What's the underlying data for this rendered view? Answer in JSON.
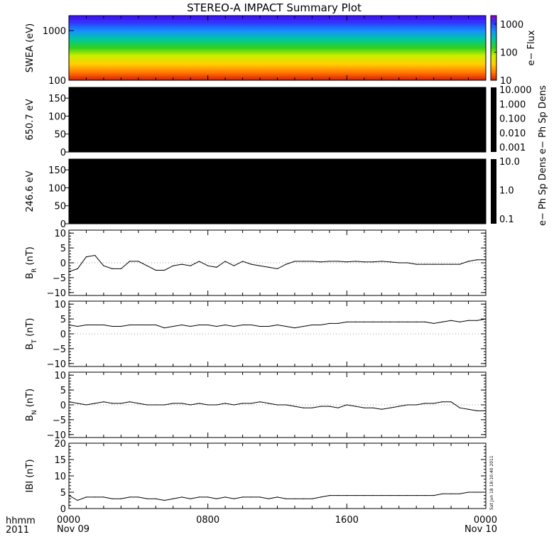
{
  "title": "STEREO-A IMPACT Summary Plot",
  "footer": {
    "label_line1": "hhmm",
    "label_line2": "2011",
    "timestamp_vertical": "Sat Jun 18 18:10:40 2011"
  },
  "chart_data": [
    {
      "type": "heatmap",
      "panel": "swea",
      "ylabel": "SWEA (eV)",
      "ylim": [
        100,
        2000
      ],
      "y_scale": "log",
      "y_ticks": [
        100,
        1000
      ],
      "y_tick_labels": [
        "100",
        "1000"
      ],
      "colorbar_label": "e− Flux",
      "colorbar_scale": "log",
      "colorbar_range": [
        10,
        2000
      ],
      "colorbar_ticks": [
        "10",
        "100",
        "1000"
      ],
      "colorbar_colors": [
        "#e01a00",
        "#ff7a00",
        "#ffd000",
        "#c8f000",
        "#30d020",
        "#00c8a0",
        "#1890ff",
        "#3030ff",
        "#a000c0"
      ]
    },
    {
      "type": "heatmap",
      "panel": "pad_650",
      "ylabel": "650.7 eV",
      "ylim": [
        0,
        180
      ],
      "y_ticks": [
        "0",
        "50",
        "100",
        "150"
      ],
      "fill_color": "#000000",
      "colorbar_label": "e− Ph Sp Dens",
      "colorbar_scale": "log",
      "colorbar_ticks": [
        "10.000",
        "1.000",
        "0.100",
        "0.010",
        "0.001"
      ]
    },
    {
      "type": "heatmap",
      "panel": "pad_246",
      "ylabel": "246.6 eV",
      "ylim": [
        0,
        180
      ],
      "y_ticks": [
        "0",
        "50",
        "100",
        "150"
      ],
      "fill_color": "#000000",
      "colorbar_label": "e− Ph Sp Dens",
      "colorbar_scale": "log",
      "colorbar_ticks": [
        "10.0",
        "1.0",
        "0.1"
      ]
    },
    {
      "type": "line",
      "panel": "br",
      "ylabel": "B",
      "ylabel_sub": "R",
      "ylabel_unit": "(nT)",
      "ylim": [
        -11,
        11
      ],
      "y_ticks": [
        "−10",
        "−5",
        "0",
        "5",
        "10"
      ],
      "x_hours": [
        0,
        0.5,
        1,
        1.5,
        2,
        2.5,
        3,
        3.5,
        4,
        4.5,
        5,
        5.5,
        6,
        6.5,
        7,
        7.5,
        8,
        8.5,
        9,
        9.5,
        10,
        10.5,
        11,
        11.5,
        12,
        12.5,
        13,
        13.5,
        14,
        14.5,
        15,
        15.5,
        16,
        16.5,
        17,
        17.5,
        18,
        18.5,
        19,
        19.5,
        20,
        20.5,
        21,
        21.5,
        22,
        22.5,
        23,
        23.5,
        24
      ],
      "values": [
        -3,
        -2,
        2,
        2.5,
        -1,
        -2,
        -2,
        0.5,
        0.5,
        -1,
        -2.5,
        -2.5,
        -1,
        -0.5,
        -1,
        0.5,
        -1,
        -1.5,
        0.5,
        -1,
        0.5,
        -0.5,
        -1,
        -1.5,
        -2,
        -0.5,
        0.5,
        0.5,
        0.5,
        0.3,
        0.5,
        0.5,
        0.3,
        0.5,
        0.3,
        0.3,
        0.5,
        0.3,
        0,
        0,
        -0.5,
        -0.5,
        -0.5,
        -0.5,
        -0.5,
        -0.5,
        0.5,
        1,
        1
      ]
    },
    {
      "type": "line",
      "panel": "bt",
      "ylabel": "B",
      "ylabel_sub": "T",
      "ylabel_unit": "(nT)",
      "ylim": [
        -11,
        11
      ],
      "y_ticks": [
        "−10",
        "−5",
        "0",
        "5",
        "10"
      ],
      "x_hours": [
        0,
        0.5,
        1,
        1.5,
        2,
        2.5,
        3,
        3.5,
        4,
        4.5,
        5,
        5.5,
        6,
        6.5,
        7,
        7.5,
        8,
        8.5,
        9,
        9.5,
        10,
        10.5,
        11,
        11.5,
        12,
        12.5,
        13,
        13.5,
        14,
        14.5,
        15,
        15.5,
        16,
        16.5,
        17,
        17.5,
        18,
        18.5,
        19,
        19.5,
        20,
        20.5,
        21,
        21.5,
        22,
        22.5,
        23,
        23.5,
        24
      ],
      "values": [
        3,
        2.5,
        3,
        3,
        3,
        2.5,
        2.5,
        3,
        3,
        3,
        3,
        2,
        2.5,
        3,
        2.5,
        3,
        3,
        2.5,
        3,
        2.5,
        3,
        3,
        2.5,
        2.5,
        3,
        2.5,
        2,
        2.5,
        3,
        3,
        3.5,
        3.5,
        4,
        4,
        4,
        4,
        4,
        4,
        4,
        4,
        4,
        4,
        3.5,
        4,
        4.5,
        4,
        4.5,
        4.5,
        5
      ]
    },
    {
      "type": "line",
      "panel": "bn",
      "ylabel": "B",
      "ylabel_sub": "N",
      "ylabel_unit": "(nT)",
      "ylim": [
        -11,
        11
      ],
      "y_ticks": [
        "−10",
        "−5",
        "0",
        "5",
        "10"
      ],
      "x_hours": [
        0,
        0.5,
        1,
        1.5,
        2,
        2.5,
        3,
        3.5,
        4,
        4.5,
        5,
        5.5,
        6,
        6.5,
        7,
        7.5,
        8,
        8.5,
        9,
        9.5,
        10,
        10.5,
        11,
        11.5,
        12,
        12.5,
        13,
        13.5,
        14,
        14.5,
        15,
        15.5,
        16,
        16.5,
        17,
        17.5,
        18,
        18.5,
        19,
        19.5,
        20,
        20.5,
        21,
        21.5,
        22,
        22.5,
        23,
        23.5,
        24
      ],
      "values": [
        1,
        0.5,
        0,
        0.5,
        1,
        0.5,
        0.5,
        1,
        0.5,
        0,
        0,
        0,
        0.5,
        0.5,
        0,
        0.5,
        0,
        0,
        0.5,
        0,
        0.5,
        0.5,
        1,
        0.5,
        0,
        0,
        -0.5,
        -1,
        -1,
        -0.5,
        -0.5,
        -1,
        0,
        -0.5,
        -1,
        -1,
        -1.5,
        -1,
        -0.5,
        0,
        0,
        0.5,
        0.5,
        1,
        1,
        -1,
        -1.5,
        -2,
        -2
      ]
    },
    {
      "type": "line",
      "panel": "bmag",
      "ylabel": "IBI (nT)",
      "ylim": [
        0,
        20
      ],
      "y_ticks": [
        "0",
        "5",
        "10",
        "15",
        "20"
      ],
      "x_tick_labels": [
        "0000",
        "0800",
        "1600",
        "0000"
      ],
      "x_tick_sublabels": [
        "Nov 09",
        "",
        "",
        "Nov 10"
      ],
      "x_hours": [
        0,
        0.5,
        1,
        1.5,
        2,
        2.5,
        3,
        3.5,
        4,
        4.5,
        5,
        5.5,
        6,
        6.5,
        7,
        7.5,
        8,
        8.5,
        9,
        9.5,
        10,
        10.5,
        11,
        11.5,
        12,
        12.5,
        13,
        13.5,
        14,
        14.5,
        15,
        15.5,
        16,
        16.5,
        17,
        17.5,
        18,
        18.5,
        19,
        19.5,
        20,
        20.5,
        21,
        21.5,
        22,
        22.5,
        23,
        23.5,
        24
      ],
      "values": [
        4,
        2.5,
        3.5,
        3.5,
        3.5,
        3,
        3,
        3.5,
        3.5,
        3,
        3,
        2.5,
        3,
        3.5,
        3,
        3.5,
        3.5,
        3,
        3.5,
        3,
        3.5,
        3.5,
        3.5,
        3,
        3.5,
        3,
        3,
        3,
        3,
        3.5,
        4,
        4,
        4,
        4,
        4,
        4,
        4,
        4,
        4,
        4,
        4,
        4,
        4,
        4.5,
        4.5,
        4.5,
        5,
        5,
        5
      ]
    }
  ]
}
